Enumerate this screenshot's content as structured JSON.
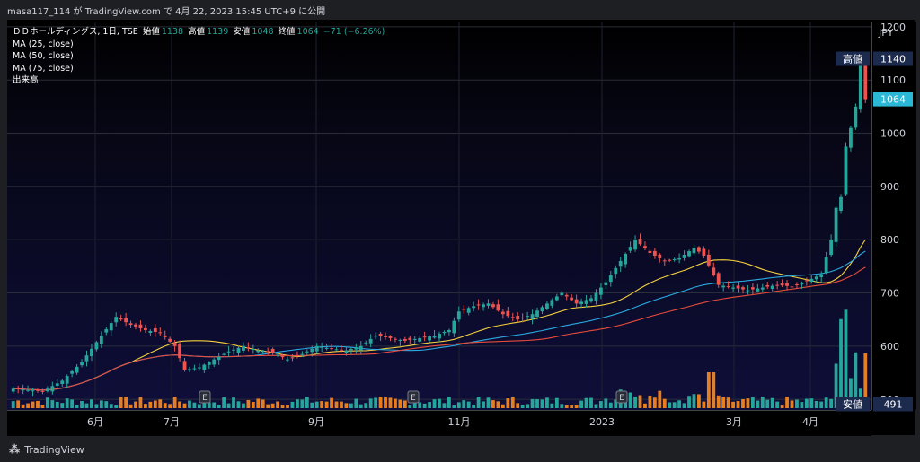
{
  "header": {
    "publish_text": "masa117_114 が TradingView.com で 4月 22, 2023 15:45 UTC+9 に公開"
  },
  "legend": {
    "symbol": "ＤＤホールディングス, 1日, TSE",
    "open_label": "始値",
    "open": "1138",
    "high_label": "高値",
    "high": "1139",
    "low_label": "安値",
    "low": "1048",
    "close_label": "終値",
    "close": "1064",
    "change": "−71 (−6.26%)",
    "ma25": "MA (25, close)",
    "ma50": "MA (50, close)",
    "ma75": "MA (75, close)",
    "volume": "出来高"
  },
  "axis": {
    "currency": "JPY"
  },
  "markers": {
    "high_label": "高値",
    "high_value": "1140",
    "last_value": "1064",
    "low_label": "安値",
    "low_value": "491"
  },
  "earnings_marker": "E",
  "brand": {
    "name": "TradingView"
  },
  "colors": {
    "up": "#26a69a",
    "down": "#ef5350",
    "ma25": "#f4d03f",
    "ma50": "#2aa9e0",
    "ma75": "#e74c3c",
    "vol_up": "#26a69a",
    "vol_down": "#e67e22",
    "badge": "#1c2a4d",
    "last": "#2bb7d6"
  },
  "chart_data": {
    "type": "candlestick",
    "title": "ＤＤホールディングス, 1日, TSE",
    "y_axis_ticks": [
      1200,
      1100,
      1000,
      900,
      800,
      700,
      600,
      500
    ],
    "x_axis_labels": [
      "6月",
      "7月",
      "9月",
      "11月",
      "2023",
      "3月",
      "4月"
    ],
    "ylim": [
      480,
      1210
    ],
    "price_path": [
      [
        0,
        520
      ],
      [
        6,
        515
      ],
      [
        10,
        535
      ],
      [
        14,
        570
      ],
      [
        18,
        620
      ],
      [
        21,
        655
      ],
      [
        24,
        640
      ],
      [
        27,
        630
      ],
      [
        30,
        625
      ],
      [
        33,
        600
      ],
      [
        35,
        555
      ],
      [
        38,
        560
      ],
      [
        41,
        575
      ],
      [
        44,
        590
      ],
      [
        47,
        600
      ],
      [
        50,
        592
      ],
      [
        53,
        588
      ],
      [
        56,
        575
      ],
      [
        59,
        585
      ],
      [
        62,
        600
      ],
      [
        65,
        595
      ],
      [
        68,
        592
      ],
      [
        71,
        600
      ],
      [
        74,
        620
      ],
      [
        77,
        615
      ],
      [
        80,
        610
      ],
      [
        83,
        615
      ],
      [
        86,
        620
      ],
      [
        89,
        630
      ],
      [
        91,
        665
      ],
      [
        94,
        675
      ],
      [
        97,
        680
      ],
      [
        100,
        660
      ],
      [
        103,
        650
      ],
      [
        106,
        660
      ],
      [
        109,
        680
      ],
      [
        112,
        700
      ],
      [
        115,
        680
      ],
      [
        118,
        690
      ],
      [
        121,
        720
      ],
      [
        124,
        760
      ],
      [
        127,
        800
      ],
      [
        130,
        775
      ],
      [
        133,
        760
      ],
      [
        136,
        765
      ],
      [
        139,
        785
      ],
      [
        141,
        770
      ],
      [
        144,
        715
      ],
      [
        147,
        710
      ],
      [
        150,
        705
      ],
      [
        153,
        710
      ],
      [
        156,
        715
      ],
      [
        159,
        712
      ],
      [
        162,
        722
      ],
      [
        165,
        735
      ],
      [
        167,
        800
      ],
      [
        168,
        860
      ],
      [
        169,
        880
      ],
      [
        170,
        975
      ],
      [
        171,
        1010
      ],
      [
        172,
        1050
      ],
      [
        173,
        1140
      ],
      [
        174,
        1064
      ]
    ],
    "ma_end": {
      "MA25": 800,
      "MA50": 765,
      "MA75": 750
    },
    "volume_spike_end": 665,
    "last_close": 1064,
    "high": 1140,
    "low": 491,
    "earnings_x": [
      "7月",
      "11月",
      "2023"
    ]
  }
}
